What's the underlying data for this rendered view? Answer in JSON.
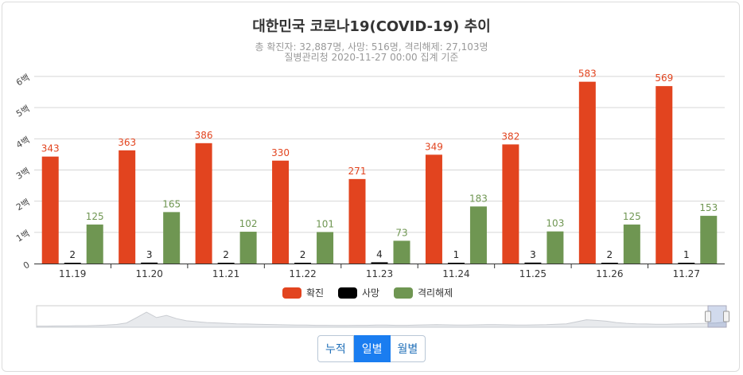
{
  "chart_data": {
    "type": "bar",
    "title": "대한민국 코로나19(COVID-19) 추이",
    "subtitle": [
      "총 확진자: 32,887명, 사망: 516명, 격리해제: 27,103명",
      "질병관리청 2020-11-27 00:00 집계 기준"
    ],
    "categories": [
      "11.19",
      "11.20",
      "11.21",
      "11.22",
      "11.23",
      "11.24",
      "11.25",
      "11.26",
      "11.27"
    ],
    "series": [
      {
        "name": "확진",
        "color": "#e2441f",
        "values": [
          343,
          363,
          386,
          330,
          271,
          349,
          382,
          583,
          569
        ]
      },
      {
        "name": "사망",
        "color": "#000000",
        "values": [
          2,
          3,
          2,
          2,
          4,
          1,
          3,
          2,
          1
        ]
      },
      {
        "name": "격리해제",
        "color": "#6f9652",
        "values": [
          125,
          165,
          102,
          101,
          73,
          183,
          103,
          125,
          153
        ]
      }
    ],
    "y_ticks": [
      {
        "value": 0,
        "label": "0"
      },
      {
        "value": 100,
        "label": "1백"
      },
      {
        "value": 200,
        "label": "2백"
      },
      {
        "value": 300,
        "label": "3백"
      },
      {
        "value": 400,
        "label": "4백"
      },
      {
        "value": 500,
        "label": "5백"
      },
      {
        "value": 600,
        "label": "6백"
      }
    ],
    "ylim": [
      0,
      600
    ],
    "grid": true,
    "legend": "bottom-center",
    "navigator": true
  },
  "buttons": [
    {
      "label": "누적",
      "active": false
    },
    {
      "label": "일별",
      "active": true
    },
    {
      "label": "월별",
      "active": false
    }
  ]
}
